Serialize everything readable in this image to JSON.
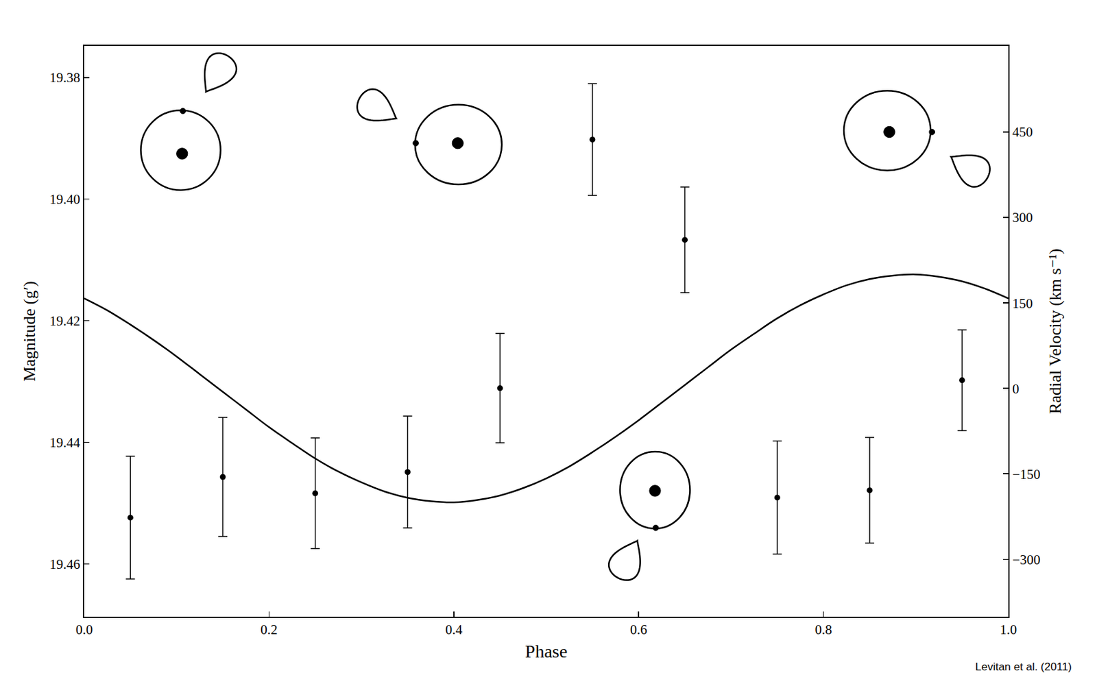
{
  "chart_data": {
    "type": "scatter",
    "x_label": "Phase",
    "y_label": "Magnitude (g′)",
    "y2_label": "Radial Velocity (km s⁻¹)",
    "annotations": [
      {
        "text": "Levitan et al. (2011)"
      }
    ],
    "xlim": [
      0,
      1
    ],
    "xticks": [
      {
        "value": 0,
        "label": "0.0"
      },
      0.2,
      0.4,
      0.6,
      0.8,
      {
        "value": 1,
        "label": "1.0"
      }
    ],
    "ylim": [
      19.4687,
      19.3748
    ],
    "yticks": [
      19.38,
      {
        "value": 19.4,
        "label": "19.40"
      },
      19.42,
      19.44,
      19.46
    ],
    "y2lim": [
      -400.8,
      601.2
    ],
    "y2ticks": [
      {
        "value": -300,
        "label": "−300"
      },
      {
        "value": -150,
        "label": "−150"
      },
      0,
      150,
      300,
      450
    ],
    "grid": false,
    "series": [
      {
        "type": "scatter",
        "marker": "circle",
        "color": "#000000",
        "x": [
          0.05,
          0.15,
          0.25,
          0.35,
          0.45,
          0.55,
          0.65,
          0.75,
          0.85,
          0.95
        ],
        "values": [
          19.4524,
          19.4457,
          19.4484,
          19.4449,
          19.4311,
          19.3902,
          19.4067,
          19.4491,
          19.4479,
          19.4298
        ],
        "error": [
          0.0101,
          0.0098,
          0.0091,
          0.0092,
          0.009,
          0.0092,
          0.0087,
          0.0093,
          0.0087,
          0.0083
        ]
      },
      {
        "type": "line",
        "axis": "y2",
        "line_style": "solid",
        "color": "#000000",
        "x": [
          0,
          0.025,
          0.05,
          0.075,
          0.1,
          0.125,
          0.15,
          0.175,
          0.2,
          0.225,
          0.25,
          0.275,
          0.3,
          0.325,
          0.35,
          0.375,
          0.4,
          0.425,
          0.45,
          0.475,
          0.5,
          0.525,
          0.55,
          0.575,
          0.6,
          0.625,
          0.65,
          0.675,
          0.7,
          0.725,
          0.75,
          0.775,
          0.8,
          0.825,
          0.85,
          0.875,
          0.9,
          0.925,
          0.95,
          0.975,
          1
        ],
        "values": [
          158,
          137,
          112,
          85,
          56,
          25,
          -6,
          -37,
          -68,
          -96,
          -123,
          -146,
          -165,
          -181,
          -192,
          -198,
          -200,
          -196,
          -188,
          -175,
          -158,
          -137,
          -112,
          -85,
          -56,
          -25,
          6,
          37,
          68,
          96,
          123,
          146,
          165,
          181,
          192,
          198,
          200,
          196,
          188,
          175,
          158
        ]
      }
    ]
  }
}
